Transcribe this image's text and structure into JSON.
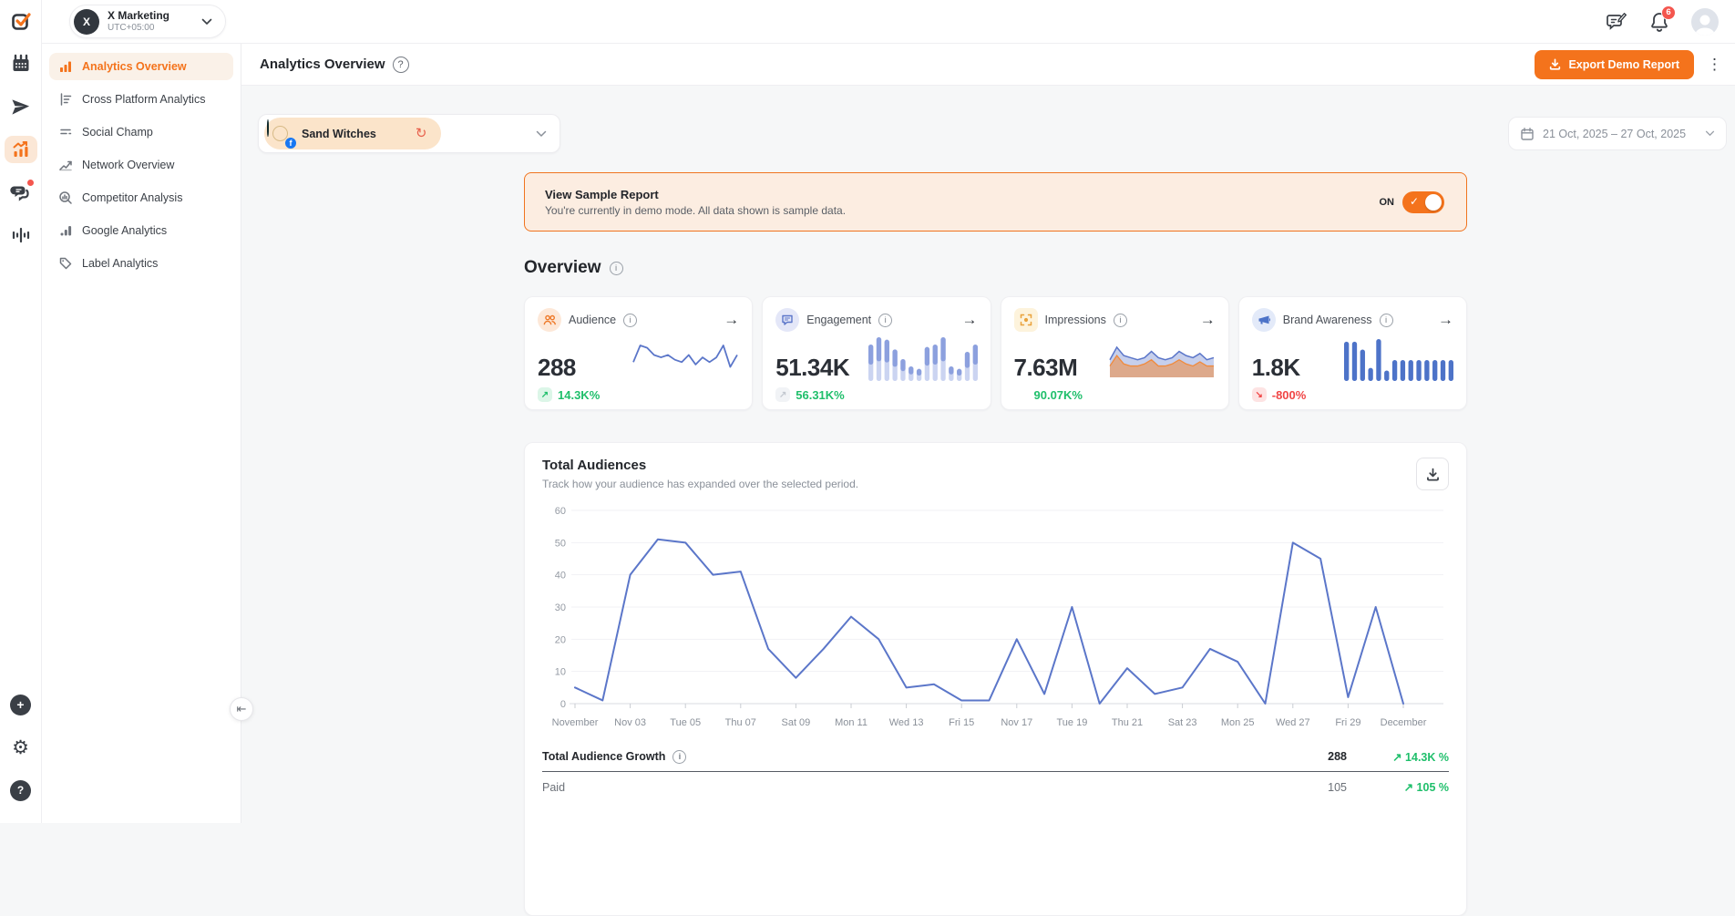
{
  "icons": {
    "trend_up": "↗",
    "trend_down": "↘",
    "refresh": "↻",
    "kebab": "⋮",
    "collapse": "⇤",
    "check": "✓",
    "arrow_right": "→",
    "info": "i",
    "help": "?",
    "plus": "+",
    "gear": "⚙",
    "question": "?"
  },
  "workspace": {
    "initial": "X",
    "name": "X Marketing",
    "timezone": "UTC+05:00"
  },
  "topbar": {
    "notification_count": "6"
  },
  "sidebar": {
    "items": [
      {
        "label": "Analytics Overview"
      },
      {
        "label": "Cross Platform Analytics"
      },
      {
        "label": "Social Champ"
      },
      {
        "label": "Network Overview"
      },
      {
        "label": "Competitor Analysis"
      },
      {
        "label": "Google Analytics"
      },
      {
        "label": "Label Analytics"
      }
    ]
  },
  "header": {
    "title": "Analytics Overview",
    "export_label": "Export Demo Report"
  },
  "filters": {
    "account_name": "Sand Witches",
    "date_range": "21 Oct, 2025 – 27 Oct, 2025"
  },
  "banner": {
    "title": "View Sample Report",
    "description": "You're currently in demo mode. All data shown is sample data.",
    "toggle_label": "ON"
  },
  "overview": {
    "heading": "Overview",
    "cards": [
      {
        "label": "Audience",
        "value": "288",
        "change": "14.3K%",
        "positive": true
      },
      {
        "label": "Engagement",
        "value": "51.34K",
        "change": "56.31K%",
        "positive": true
      },
      {
        "label": "Impressions",
        "value": "7.63M",
        "change": "90.07K%",
        "positive": true
      },
      {
        "label": "Brand Awareness",
        "value": "1.8K",
        "change": "-800%",
        "positive": false
      }
    ]
  },
  "audiences_panel": {
    "title": "Total Audiences",
    "subtitle": "Track how your audience has expanded over the selected period."
  },
  "growth_table": {
    "rows": [
      {
        "label": "Total Audience Growth",
        "value": "288",
        "change": "14.3K %",
        "positive": true
      },
      {
        "label": "Paid",
        "value": "105",
        "change": "105 %",
        "positive": true
      }
    ]
  },
  "chart_data": {
    "type": "line",
    "title": "Total Audiences",
    "xlabel": "",
    "ylabel": "",
    "x_tick_labels": [
      "November",
      "Nov 03",
      "Tue 05",
      "Thu 07",
      "Sat 09",
      "Mon 11",
      "Wed 13",
      "Fri 15",
      "Nov 17",
      "Tue 19",
      "Thu 21",
      "Sat 23",
      "Mon 25",
      "Wed 27",
      "Fri 29",
      "December"
    ],
    "values": [
      5,
      1,
      40,
      51,
      50,
      40,
      41,
      17,
      8,
      17,
      27,
      20,
      5,
      6,
      1,
      1,
      20,
      3,
      30,
      0,
      11,
      3,
      5,
      17,
      13,
      0,
      50,
      45,
      2,
      30,
      0
    ],
    "ylim": [
      0,
      60
    ],
    "ytick_step": 10,
    "grid": true,
    "legend": "none",
    "line_color": "#5B76C9",
    "sparklines": {
      "audience": {
        "type": "line",
        "color": "#5B76C9",
        "values": [
          6,
          13,
          12,
          9,
          8,
          9,
          7,
          6,
          9,
          5,
          8,
          6,
          8,
          13,
          4,
          9
        ]
      },
      "engagement": {
        "type": "bar",
        "color": "#8CA0DE",
        "color_light": "#CBD4F1",
        "values": [
          30,
          36,
          34,
          26,
          18,
          12,
          10,
          28,
          30,
          36,
          12,
          10,
          24,
          30
        ]
      },
      "impressions": {
        "type": "dual-line",
        "color_a": "#5B76C9",
        "color_b": "#F08A3C",
        "values_a": [
          8,
          14,
          10,
          9,
          8,
          9,
          12,
          9,
          8,
          9,
          12,
          10,
          9,
          11,
          8,
          9
        ],
        "values_b": [
          5,
          10,
          6,
          5,
          5,
          6,
          8,
          5,
          5,
          6,
          8,
          6,
          5,
          7,
          5,
          5
        ]
      },
      "brand": {
        "type": "bar",
        "color": "#4D73C8",
        "color_light": "",
        "values": [
          30,
          30,
          24,
          10,
          32,
          8,
          16,
          16,
          16,
          16,
          16,
          16,
          16,
          16
        ]
      }
    }
  }
}
